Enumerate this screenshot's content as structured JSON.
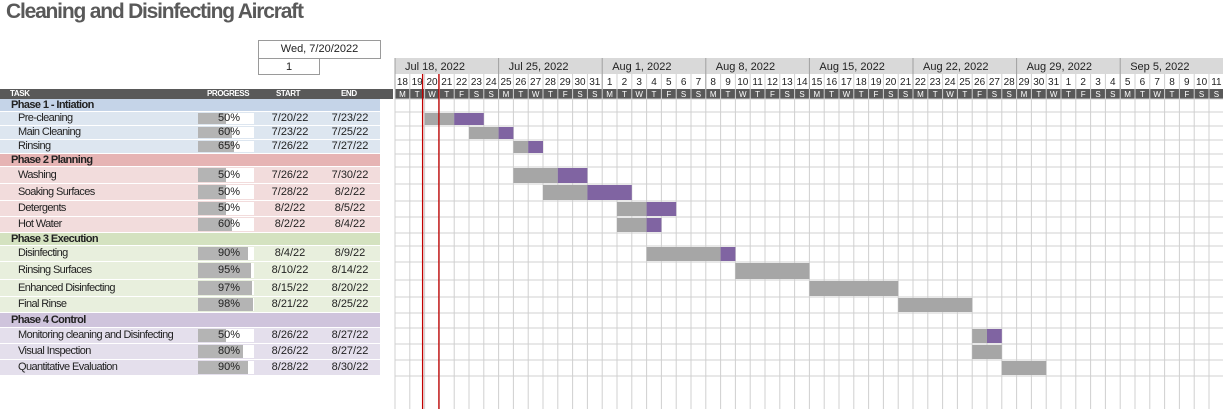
{
  "title": "Cleaning and Disinfecting Aircraft",
  "project_start": "Wed, 7/20/2022",
  "display_week": "1",
  "columns": {
    "task": "TASK",
    "progress": "PROGRESS",
    "start": "START",
    "end": "END"
  },
  "week_labels": [
    "Jul 18, 2022",
    "Jul 25, 2022",
    "Aug 1, 2022",
    "Aug 8, 2022",
    "Aug 15, 2022",
    "Aug 22, 2022",
    "Aug 29, 2022",
    "Sep 5, 2022"
  ],
  "day_numbers": [
    "18",
    "19",
    "20",
    "21",
    "22",
    "23",
    "24",
    "25",
    "26",
    "27",
    "28",
    "29",
    "30",
    "31",
    "1",
    "2",
    "3",
    "4",
    "5",
    "6",
    "7",
    "8",
    "9",
    "10",
    "11",
    "12",
    "13",
    "14",
    "15",
    "16",
    "17",
    "18",
    "19",
    "20",
    "21",
    "22",
    "23",
    "24",
    "25",
    "26",
    "27",
    "28",
    "29",
    "30",
    "31",
    "1",
    "2",
    "3",
    "4",
    "5",
    "6",
    "7",
    "8",
    "9",
    "10",
    "11"
  ],
  "weekday_letters": [
    "M",
    "T",
    "W",
    "T",
    "F",
    "S",
    "S"
  ],
  "colors": {
    "phase1": "#c5d4e8",
    "phase1_light": "#dde6f0",
    "phase2": "#e6b4b4",
    "phase2_light": "#f2dcdc",
    "phase3": "#d4e2c0",
    "phase3_light": "#e8efdd",
    "phase4": "#cfc4dc",
    "phase4_light": "#e4dfec",
    "bar_done": "#a6a6a6",
    "bar_todo": "#8064a2",
    "today_line": "#c00000"
  },
  "rows": [
    {
      "type": "phase",
      "group": 1,
      "task": "Phase 1 - Intiation"
    },
    {
      "type": "task",
      "group": 1,
      "task": "Pre-cleaning",
      "progress": "50%",
      "pct": 0.5,
      "start": "7/20/22",
      "end": "7/23/22",
      "s": 2,
      "d": 4
    },
    {
      "type": "task",
      "group": 1,
      "task": "Main Cleaning",
      "progress": "60%",
      "pct": 0.6,
      "start": "7/23/22",
      "end": "7/25/22",
      "s": 5,
      "d": 3
    },
    {
      "type": "task",
      "group": 1,
      "task": "Rinsing",
      "progress": "65%",
      "pct": 0.65,
      "start": "7/26/22",
      "end": "7/27/22",
      "s": 8,
      "d": 2
    },
    {
      "type": "phase",
      "group": 2,
      "task": "Phase 2 Planning"
    },
    {
      "type": "task",
      "group": 2,
      "task": "Washing",
      "progress": "50%",
      "pct": 0.5,
      "start": "7/26/22",
      "end": "7/30/22",
      "s": 8,
      "d": 5
    },
    {
      "type": "task",
      "group": 2,
      "task": "Soaking Surfaces",
      "progress": "50%",
      "pct": 0.5,
      "start": "7/28/22",
      "end": "8/2/22",
      "s": 10,
      "d": 6
    },
    {
      "type": "task",
      "group": 2,
      "task": "Detergents",
      "progress": "50%",
      "pct": 0.5,
      "start": "8/2/22",
      "end": "8/5/22",
      "s": 15,
      "d": 4
    },
    {
      "type": "task",
      "group": 2,
      "task": "Hot Water",
      "progress": "60%",
      "pct": 0.6,
      "start": "8/2/22",
      "end": "8/4/22",
      "s": 15,
      "d": 3
    },
    {
      "type": "phase",
      "group": 3,
      "task": "Phase 3 Execution"
    },
    {
      "type": "task",
      "group": 3,
      "task": "Disinfecting",
      "progress": "90%",
      "pct": 0.9,
      "start": "8/4/22",
      "end": "8/9/22",
      "s": 17,
      "d": 6
    },
    {
      "type": "task",
      "group": 3,
      "task": "Rinsing Surfaces",
      "progress": "95%",
      "pct": 0.95,
      "start": "8/10/22",
      "end": "8/14/22",
      "s": 23,
      "d": 5
    },
    {
      "type": "task",
      "group": 3,
      "task": "Enhanced Disinfecting",
      "progress": "97%",
      "pct": 0.97,
      "start": "8/15/22",
      "end": "8/20/22",
      "s": 28,
      "d": 6
    },
    {
      "type": "task",
      "group": 3,
      "task": "Final Rinse",
      "progress": "98%",
      "pct": 0.98,
      "start": "8/21/22",
      "end": "8/25/22",
      "s": 34,
      "d": 5
    },
    {
      "type": "phase",
      "group": 4,
      "task": "Phase 4 Control"
    },
    {
      "type": "task",
      "group": 4,
      "task": "Monitoring cleaning and Disinfecting",
      "progress": "50%",
      "pct": 0.5,
      "start": "8/26/22",
      "end": "8/27/22",
      "s": 39,
      "d": 2
    },
    {
      "type": "task",
      "group": 4,
      "task": "Visual Inspection",
      "progress": "80%",
      "pct": 0.8,
      "start": "8/26/22",
      "end": "8/27/22",
      "s": 39,
      "d": 2
    },
    {
      "type": "task",
      "group": 4,
      "task": "Quantitative Evaluation",
      "progress": "90%",
      "pct": 0.9,
      "start": "8/28/22",
      "end": "8/30/22",
      "s": 41,
      "d": 3
    }
  ]
}
